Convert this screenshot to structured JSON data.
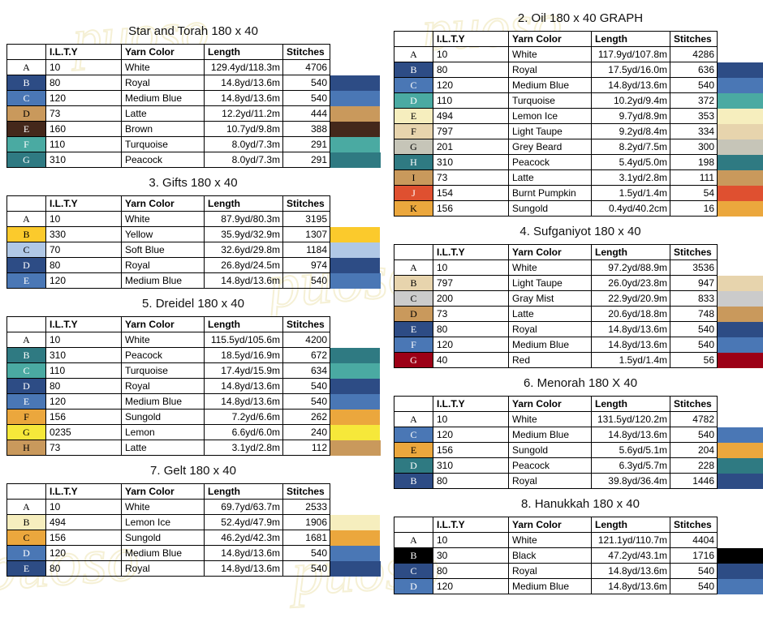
{
  "watermark": {
    "text": "puoso"
  },
  "columns": {
    "headers": [
      "I.L.T.Y",
      "Yarn Color",
      "Length",
      "Stitches"
    ]
  },
  "yarn_colors": {
    "White": "#ffffff",
    "Royal": "#2d4c85",
    "Medium Blue": "#4a77b5",
    "Latte": "#c9995c",
    "Brown": "#44281b",
    "Turquoise": "#4aaaa2",
    "Peacock": "#2f7a82",
    "Lemon Ice": "#f6eebe",
    "Light Taupe": "#e7d4ad",
    "Grey Beard": "#c6c5b8",
    "Burnt Pumpkin": "#df5030",
    "Sungold": "#eba73d",
    "Yellow": "#fbca2c",
    "Soft Blue": "#b0c8e6",
    "Gray Mist": "#cbcbcb",
    "Red": "#9c0016",
    "Lemon": "#f6e83a",
    "Black": "#000000"
  },
  "tables": [
    {
      "id": "star-and-torah",
      "title": "Star and Torah 180 x 40",
      "column": "left",
      "rows": [
        {
          "letter": "A",
          "ilty": "10",
          "color": "White",
          "length": "129.4yd/118.3m",
          "stitches": "4706"
        },
        {
          "letter": "B",
          "ilty": "80",
          "color": "Royal",
          "length": "14.8yd/13.6m",
          "stitches": "540"
        },
        {
          "letter": "C",
          "ilty": "120",
          "color": "Medium Blue",
          "length": "14.8yd/13.6m",
          "stitches": "540"
        },
        {
          "letter": "D",
          "ilty": "73",
          "color": "Latte",
          "length": "12.2yd/11.2m",
          "stitches": "444"
        },
        {
          "letter": "E",
          "ilty": "160",
          "color": "Brown",
          "length": "10.7yd/9.8m",
          "stitches": "388"
        },
        {
          "letter": "F",
          "ilty": "110",
          "color": "Turquoise",
          "length": "8.0yd/7.3m",
          "stitches": "291"
        },
        {
          "letter": "G",
          "ilty": "310",
          "color": "Peacock",
          "length": "8.0yd/7.3m",
          "stitches": "291"
        }
      ]
    },
    {
      "id": "oil",
      "title": "2. Oil 180 x 40 GRAPH",
      "column": "right",
      "rows": [
        {
          "letter": "A",
          "ilty": "10",
          "color": "White",
          "length": "117.9yd/107.8m",
          "stitches": "4286"
        },
        {
          "letter": "B",
          "ilty": "80",
          "color": "Royal",
          "length": "17.5yd/16.0m",
          "stitches": "636"
        },
        {
          "letter": "C",
          "ilty": "120",
          "color": "Medium Blue",
          "length": "14.8yd/13.6m",
          "stitches": "540"
        },
        {
          "letter": "D",
          "ilty": "110",
          "color": "Turquoise",
          "length": "10.2yd/9.4m",
          "stitches": "372"
        },
        {
          "letter": "E",
          "ilty": "494",
          "color": "Lemon Ice",
          "length": "9.7yd/8.9m",
          "stitches": "353"
        },
        {
          "letter": "F",
          "ilty": "797",
          "color": "Light Taupe",
          "length": "9.2yd/8.4m",
          "stitches": "334"
        },
        {
          "letter": "G",
          "ilty": "201",
          "color": "Grey Beard",
          "length": "8.2yd/7.5m",
          "stitches": "300"
        },
        {
          "letter": "H",
          "ilty": "310",
          "color": "Peacock",
          "length": "5.4yd/5.0m",
          "stitches": "198"
        },
        {
          "letter": "I",
          "ilty": "73",
          "color": "Latte",
          "length": "3.1yd/2.8m",
          "stitches": "111"
        },
        {
          "letter": "J",
          "ilty": "154",
          "color": "Burnt Pumpkin",
          "length": "1.5yd/1.4m",
          "stitches": "54"
        },
        {
          "letter": "K",
          "ilty": "156",
          "color": "Sungold",
          "length": "0.4yd/40.2cm",
          "stitches": "16"
        }
      ]
    },
    {
      "id": "gifts",
      "title": "3. Gifts 180 x 40",
      "column": "left",
      "rows": [
        {
          "letter": "A",
          "ilty": "10",
          "color": "White",
          "length": "87.9yd/80.3m",
          "stitches": "3195"
        },
        {
          "letter": "B",
          "ilty": "330",
          "color": "Yellow",
          "length": "35.9yd/32.9m",
          "stitches": "1307"
        },
        {
          "letter": "C",
          "ilty": "70",
          "color": "Soft Blue",
          "length": "32.6yd/29.8m",
          "stitches": "1184"
        },
        {
          "letter": "D",
          "ilty": "80",
          "color": "Royal",
          "length": "26.8yd/24.5m",
          "stitches": "974"
        },
        {
          "letter": "E",
          "ilty": "120",
          "color": "Medium Blue",
          "length": "14.8yd/13.6m",
          "stitches": "540"
        }
      ]
    },
    {
      "id": "sufganiyot",
      "title": "4. Sufganiyot 180 x 40",
      "column": "right",
      "rows": [
        {
          "letter": "A",
          "ilty": "10",
          "color": "White",
          "length": "97.2yd/88.9m",
          "stitches": "3536"
        },
        {
          "letter": "B",
          "ilty": "797",
          "color": "Light Taupe",
          "length": "26.0yd/23.8m",
          "stitches": "947"
        },
        {
          "letter": "C",
          "ilty": "200",
          "color": "Gray Mist",
          "length": "22.9yd/20.9m",
          "stitches": "833"
        },
        {
          "letter": "D",
          "ilty": "73",
          "color": "Latte",
          "length": "20.6yd/18.8m",
          "stitches": "748"
        },
        {
          "letter": "E",
          "ilty": "80",
          "color": "Royal",
          "length": "14.8yd/13.6m",
          "stitches": "540"
        },
        {
          "letter": "F",
          "ilty": "120",
          "color": "Medium Blue",
          "length": "14.8yd/13.6m",
          "stitches": "540"
        },
        {
          "letter": "G",
          "ilty": "40",
          "color": "Red",
          "length": "1.5yd/1.4m",
          "stitches": "56"
        }
      ]
    },
    {
      "id": "dreidel",
      "title": "5. Dreidel 180 x 40",
      "column": "left",
      "rows": [
        {
          "letter": "A",
          "ilty": "10",
          "color": "White",
          "length": "115.5yd/105.6m",
          "stitches": "4200"
        },
        {
          "letter": "B",
          "ilty": "310",
          "color": "Peacock",
          "length": "18.5yd/16.9m",
          "stitches": "672"
        },
        {
          "letter": "C",
          "ilty": "110",
          "color": "Turquoise",
          "length": "17.4yd/15.9m",
          "stitches": "634"
        },
        {
          "letter": "D",
          "ilty": "80",
          "color": "Royal",
          "length": "14.8yd/13.6m",
          "stitches": "540"
        },
        {
          "letter": "E",
          "ilty": "120",
          "color": "Medium Blue",
          "length": "14.8yd/13.6m",
          "stitches": "540"
        },
        {
          "letter": "F",
          "ilty": "156",
          "color": "Sungold",
          "length": "7.2yd/6.6m",
          "stitches": "262"
        },
        {
          "letter": "G",
          "ilty": "0235",
          "color": "Lemon",
          "length": "6.6yd/6.0m",
          "stitches": "240"
        },
        {
          "letter": "H",
          "ilty": "73",
          "color": "Latte",
          "length": "3.1yd/2.8m",
          "stitches": "112"
        }
      ]
    },
    {
      "id": "menorah",
      "title": "6. Menorah 180 X 40",
      "column": "right",
      "rows": [
        {
          "letter": "A",
          "ilty": "10",
          "color": "White",
          "length": "131.5yd/120.2m",
          "stitches": "4782"
        },
        {
          "letter": "C",
          "ilty": "120",
          "color": "Medium Blue",
          "length": "14.8yd/13.6m",
          "stitches": "540"
        },
        {
          "letter": "E",
          "ilty": "156",
          "color": "Sungold",
          "length": "5.6yd/5.1m",
          "stitches": "204"
        },
        {
          "letter": "D",
          "ilty": "310",
          "color": "Peacock",
          "length": "6.3yd/5.7m",
          "stitches": "228"
        },
        {
          "letter": "B",
          "ilty": "80",
          "color": "Royal",
          "length": "39.8yd/36.4m",
          "stitches": "1446"
        }
      ]
    },
    {
      "id": "gelt",
      "title": "7. Gelt 180 x 40",
      "column": "left",
      "rows": [
        {
          "letter": "A",
          "ilty": "10",
          "color": "White",
          "length": "69.7yd/63.7m",
          "stitches": "2533"
        },
        {
          "letter": "B",
          "ilty": "494",
          "color": "Lemon Ice",
          "length": "52.4yd/47.9m",
          "stitches": "1906"
        },
        {
          "letter": "C",
          "ilty": "156",
          "color": "Sungold",
          "length": "46.2yd/42.3m",
          "stitches": "1681"
        },
        {
          "letter": "D",
          "ilty": "120",
          "color": "Medium Blue",
          "length": "14.8yd/13.6m",
          "stitches": "540"
        },
        {
          "letter": "E",
          "ilty": "80",
          "color": "Royal",
          "length": "14.8yd/13.6m",
          "stitches": "540"
        }
      ]
    },
    {
      "id": "hanukkah",
      "title": "8. Hanukkah 180 x 40",
      "column": "right",
      "rows": [
        {
          "letter": "A",
          "ilty": "10",
          "color": "White",
          "length": "121.1yd/110.7m",
          "stitches": "4404"
        },
        {
          "letter": "B",
          "ilty": "30",
          "color": "Black",
          "length": "47.2yd/43.1m",
          "stitches": "1716"
        },
        {
          "letter": "C",
          "ilty": "80",
          "color": "Royal",
          "length": "14.8yd/13.6m",
          "stitches": "540"
        },
        {
          "letter": "D",
          "ilty": "120",
          "color": "Medium Blue",
          "length": "14.8yd/13.6m",
          "stitches": "540"
        }
      ]
    }
  ]
}
